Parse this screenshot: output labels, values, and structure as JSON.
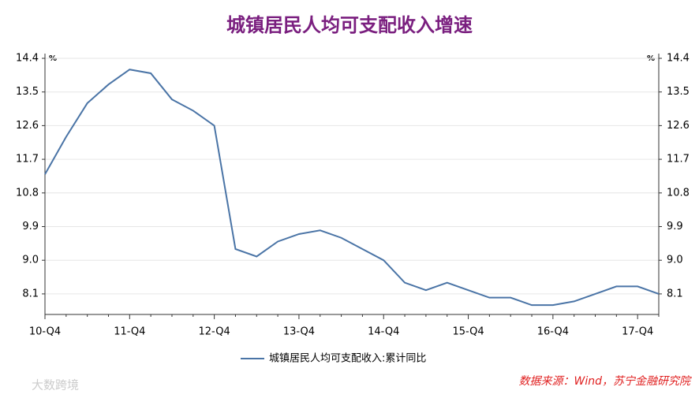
{
  "chart_data": {
    "type": "line",
    "title": "城镇居民人均可支配收入增速",
    "y_unit": "%",
    "y2_unit": "%",
    "categories": [
      "10-Q4",
      null,
      null,
      null,
      "11-Q4",
      null,
      null,
      null,
      "12-Q4",
      null,
      null,
      null,
      "13-Q4",
      null,
      null,
      null,
      "14-Q4",
      null,
      null,
      null,
      "15-Q4",
      null,
      null,
      null,
      "16-Q4",
      null,
      null,
      null,
      "17-Q4",
      null
    ],
    "series": [
      {
        "name": "城镇居民人均可支配收入:累计同比",
        "color": "#4a74a6",
        "values": [
          11.3,
          12.3,
          13.2,
          13.7,
          14.1,
          14.0,
          13.3,
          13.0,
          12.6,
          9.3,
          9.1,
          9.5,
          9.7,
          9.8,
          9.6,
          9.3,
          9.0,
          8.4,
          8.2,
          8.4,
          8.2,
          8.0,
          8.0,
          7.8,
          7.8,
          7.9,
          8.1,
          8.3,
          8.3,
          8.1
        ]
      }
    ],
    "ylim": [
      7.55,
      14.4
    ],
    "yticks": [
      14.4,
      13.5,
      12.6,
      11.7,
      10.8,
      9.9,
      {
        "value": 9,
        "label": "9.0"
      },
      8.1
    ],
    "y2lim": [
      7.55,
      14.4
    ],
    "y2ticks": [
      14.4,
      13.5,
      12.6,
      11.7,
      10.8,
      9.9,
      {
        "value": 9,
        "label": "9.0"
      },
      8.1
    ],
    "grid": true,
    "source": "数据来源：Wind，苏宁金融研究院",
    "watermark": "大数跨境"
  }
}
